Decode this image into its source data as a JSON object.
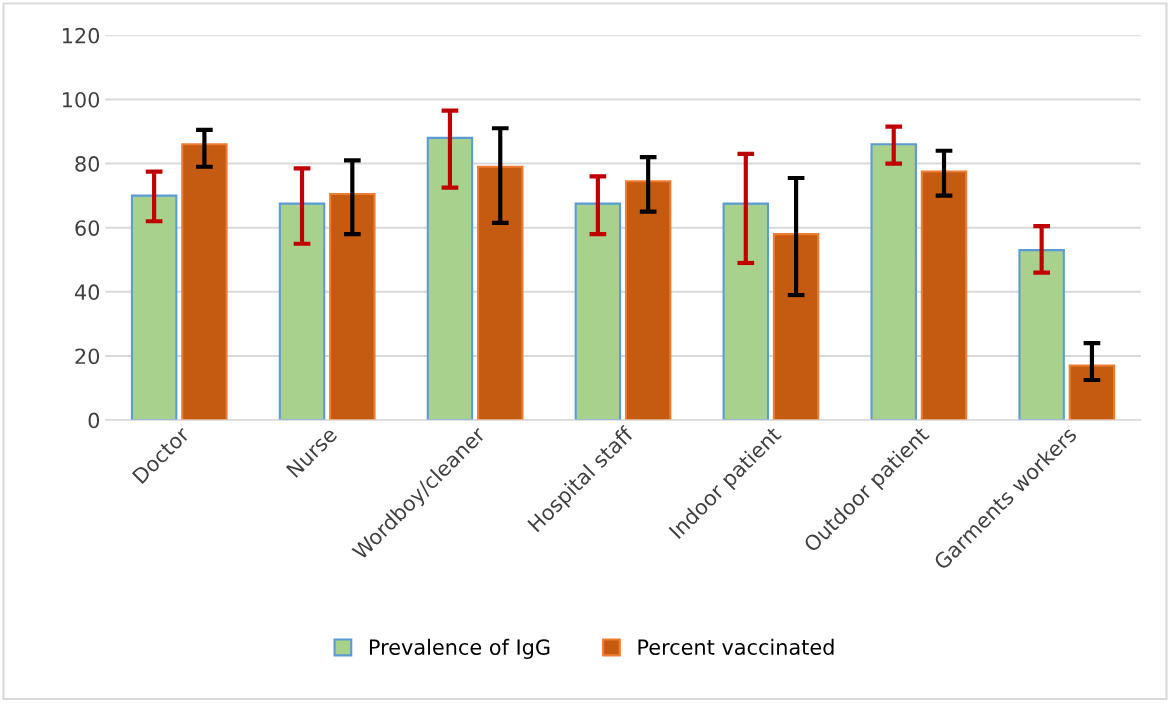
{
  "chart_data": {
    "type": "bar",
    "categories": [
      "Doctor",
      "Nurse",
      "Wordboy/cleaner",
      "Hospital staff",
      "Indoor patient",
      "Outdoor patient",
      "Garments workers"
    ],
    "series": [
      {
        "name": "Prevalence of IgG",
        "color": "#a9d18e",
        "values": [
          70,
          67.5,
          88,
          67.5,
          67.5,
          86,
          53
        ],
        "errors": [
          [
            62,
            77.5
          ],
          [
            55,
            78.5
          ],
          [
            72.5,
            96.5
          ],
          [
            58,
            76
          ],
          [
            49,
            83
          ],
          [
            80,
            91.5
          ],
          [
            46,
            60.5
          ]
        ]
      },
      {
        "name": "Percent vaccinated",
        "color": "#c55a11",
        "values": [
          86,
          70.5,
          79,
          74.5,
          58,
          77.5,
          17
        ],
        "errors": [
          [
            79,
            90.5
          ],
          [
            58,
            81
          ],
          [
            61.5,
            91
          ],
          [
            65,
            82
          ],
          [
            39,
            75.5
          ],
          [
            70,
            84
          ],
          [
            12.5,
            24
          ]
        ]
      }
    ],
    "ylim": [
      0,
      120
    ],
    "yticks": [
      0,
      20,
      40,
      60,
      80,
      100,
      120
    ],
    "grid": "y",
    "legend": "bottom"
  }
}
